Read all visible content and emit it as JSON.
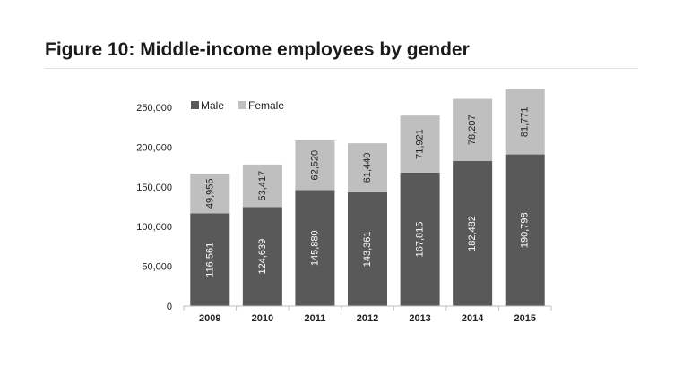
{
  "title": "Figure 10: Middle-income employees by gender",
  "chart_data": {
    "type": "bar",
    "stacked": true,
    "categories": [
      "2009",
      "2010",
      "2011",
      "2012",
      "2013",
      "2014",
      "2015"
    ],
    "series": [
      {
        "name": "Male",
        "color": "#595959",
        "values": [
          116561,
          124639,
          145880,
          143361,
          167815,
          182482,
          190798
        ],
        "labels": [
          "116,561",
          "124,639",
          "145,880",
          "143,361",
          "167,815",
          "182,482",
          "190,798"
        ]
      },
      {
        "name": "Female",
        "color": "#bfbfbf",
        "values": [
          49955,
          53417,
          62520,
          61440,
          71921,
          78207,
          81771
        ],
        "labels": [
          "49,955",
          "53,417",
          "62,520",
          "61,440",
          "71,921",
          "78,207",
          "81,771"
        ]
      }
    ],
    "yticks": [
      "0",
      "50,000",
      "100,000",
      "150,000",
      "200,000",
      "250,000"
    ],
    "ytick_values": [
      0,
      50000,
      100000,
      150000,
      200000,
      250000
    ],
    "ylim": [
      0,
      250000
    ],
    "legend_position": "top-left",
    "grid": false
  }
}
